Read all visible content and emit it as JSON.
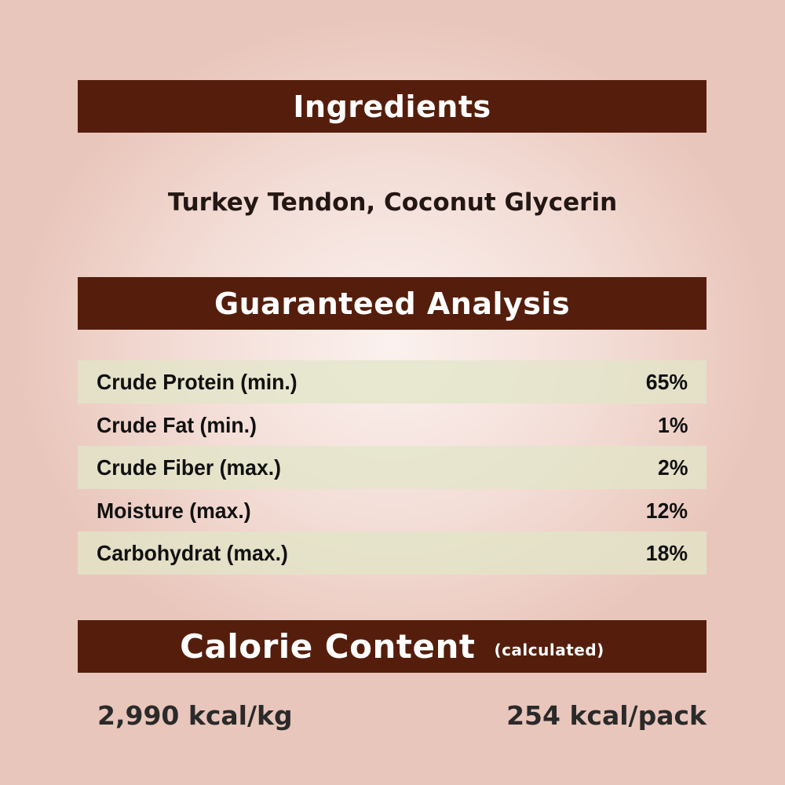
{
  "ingredients": {
    "heading": "Ingredients",
    "text": "Turkey Tendon, Coconut Glycerin"
  },
  "analysis": {
    "heading": "Guaranteed Analysis",
    "rows": [
      {
        "label": "Crude Protein (min.)",
        "value": "65%"
      },
      {
        "label": "Crude Fat (min.)",
        "value": "1%"
      },
      {
        "label": "Crude Fiber (max.)",
        "value": "2%"
      },
      {
        "label": "Moisture (max.)",
        "value": "12%"
      },
      {
        "label": "Carbohydrat (max.)",
        "value": "18%"
      }
    ]
  },
  "calorie": {
    "heading": "Calorie Content",
    "note": "(calculated)",
    "per_kg": "2,990 kcal/kg",
    "per_pack": "254 kcal/pack"
  },
  "colors": {
    "banner": "#551e0c",
    "row_shade": "#e2e6c8",
    "background": "#f3ddd6"
  }
}
